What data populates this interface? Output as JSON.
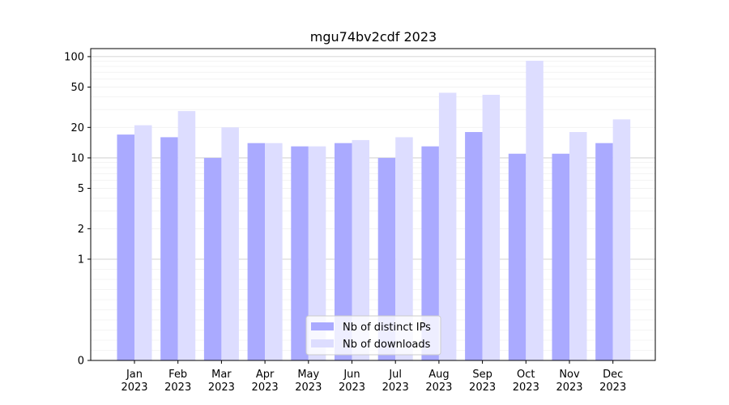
{
  "chart_data": {
    "type": "bar",
    "title": "mgu74bv2cdf 2023",
    "xlabel": "",
    "ylabel": "",
    "yscale": "symlog",
    "ylim": [
      0,
      120
    ],
    "yticks": [
      0,
      1,
      2,
      5,
      10,
      20,
      50,
      100
    ],
    "categories": [
      "Jan",
      "Feb",
      "Mar",
      "Apr",
      "May",
      "Jun",
      "Jul",
      "Aug",
      "Sep",
      "Oct",
      "Nov",
      "Dec"
    ],
    "category_sublabel": "2023",
    "legend_position": "bottom-center",
    "grid": true,
    "series": [
      {
        "name": "Nb of distinct IPs",
        "color": "#aaaaff",
        "values": [
          17,
          16,
          10,
          14,
          13,
          14,
          10,
          13,
          18,
          11,
          11,
          14
        ]
      },
      {
        "name": "Nb of downloads",
        "color": "#ddddff",
        "values": [
          21,
          29,
          20,
          14,
          13,
          15,
          16,
          44,
          42,
          91,
          18,
          24
        ]
      }
    ]
  }
}
